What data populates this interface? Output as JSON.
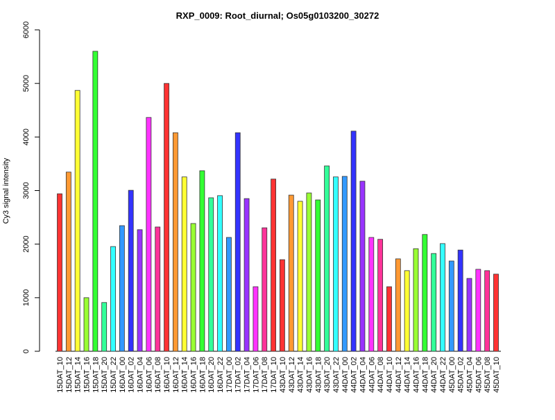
{
  "chart_data": {
    "type": "bar",
    "title": "RXP_0009: Root_diurnal; Os05g0103200_30272",
    "xlabel": "",
    "ylabel": "Cy3 signal intensity",
    "ylim": [
      0,
      6000
    ],
    "yticks": [
      "0",
      "1000",
      "2000",
      "3000",
      "4000",
      "5000",
      "6000"
    ],
    "grid": false,
    "categories": [
      "15DAT_10",
      "15DAT_12",
      "15DAT_14",
      "15DAT_16",
      "15DAT_18",
      "15DAT_20",
      "15DAT_22",
      "16DAT_00",
      "16DAT_02",
      "16DAT_04",
      "16DAT_06",
      "16DAT_08",
      "16DAT_10",
      "16DAT_12",
      "16DAT_14",
      "16DAT_16",
      "16DAT_18",
      "16DAT_20",
      "16DAT_22",
      "17DAT_00",
      "17DAT_02",
      "17DAT_04",
      "17DAT_06",
      "17DAT_08",
      "17DAT_10",
      "43DAT_10",
      "43DAT_12",
      "43DAT_14",
      "43DAT_16",
      "43DAT_18",
      "43DAT_20",
      "43DAT_22",
      "44DAT_00",
      "44DAT_02",
      "44DAT_04",
      "44DAT_06",
      "44DAT_08",
      "44DAT_10",
      "44DAT_12",
      "44DAT_14",
      "44DAT_16",
      "44DAT_18",
      "44DAT_20",
      "44DAT_22",
      "45DAT_00",
      "45DAT_02",
      "45DAT_04",
      "45DAT_06",
      "45DAT_08",
      "45DAT_10"
    ],
    "values": [
      2940,
      3345,
      4870,
      1000,
      5600,
      910,
      1955,
      2345,
      3005,
      2270,
      4365,
      2320,
      5000,
      4080,
      3255,
      2385,
      3370,
      2865,
      2905,
      2125,
      4080,
      2850,
      1205,
      2305,
      3215,
      1710,
      2915,
      2800,
      2955,
      2825,
      3460,
      3255,
      3265,
      4110,
      3175,
      2125,
      2090,
      1205,
      1725,
      1505,
      1915,
      2180,
      1825,
      2010,
      1685,
      1890,
      1360,
      1530,
      1505,
      1440
    ],
    "hour_colors": {
      "10": "#ff3333",
      "12": "#ff9933",
      "14": "#ffff33",
      "16": "#99ff33",
      "18": "#33ff33",
      "20": "#33ff99",
      "22": "#33ffff",
      "00": "#3399ff",
      "02": "#3333ff",
      "04": "#9933ff",
      "06": "#ff33ff",
      "08": "#ff3399"
    }
  }
}
